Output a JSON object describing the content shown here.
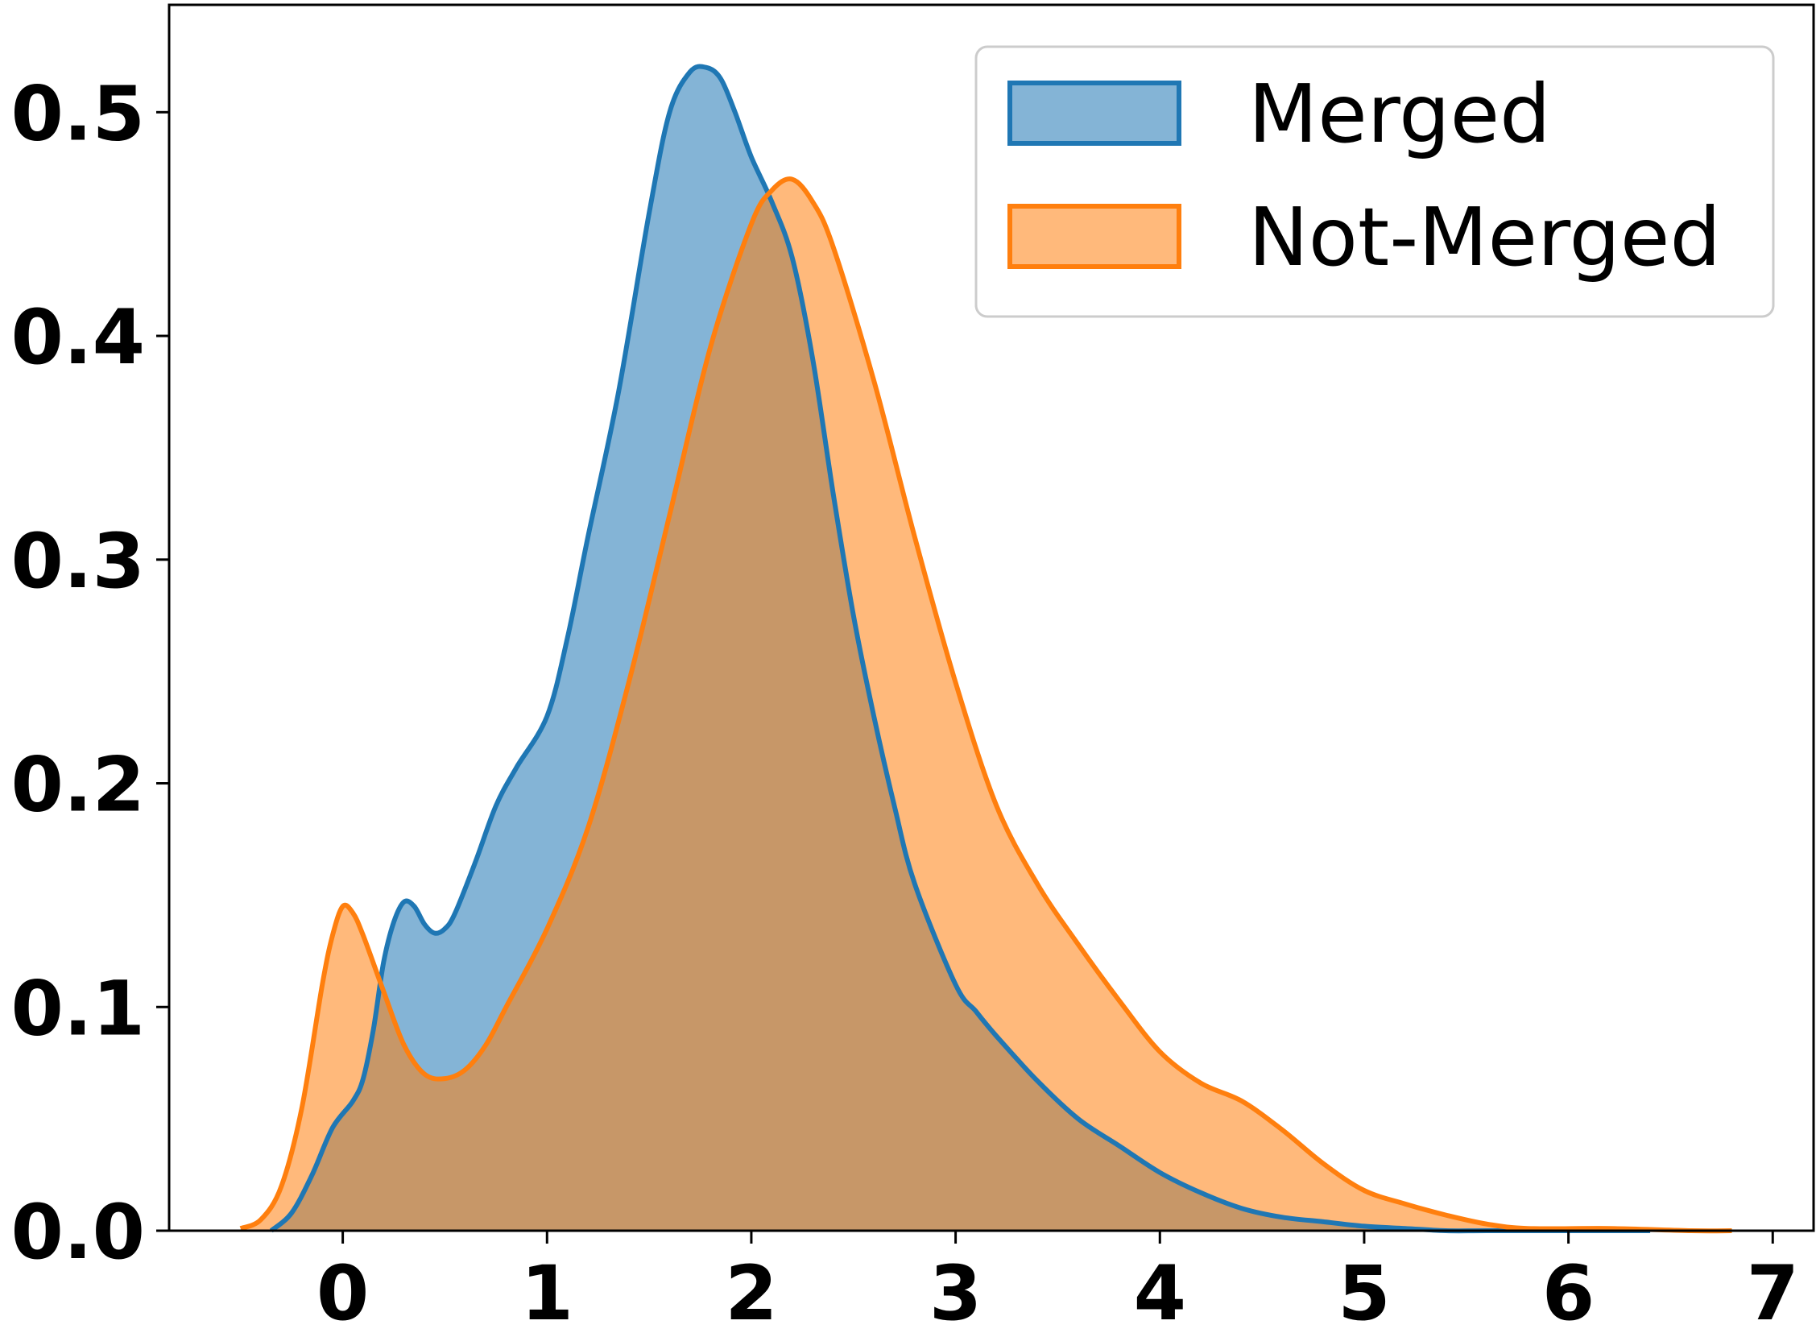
{
  "chart_data": {
    "type": "area",
    "title": "",
    "xlabel": "",
    "ylabel": "",
    "xlim": [
      -0.85,
      7.2
    ],
    "ylim": [
      0,
      0.548
    ],
    "xticks": [
      "0",
      "1",
      "2",
      "3",
      "4",
      "5",
      "6",
      "7"
    ],
    "yticks": [
      "0.0",
      "0.1",
      "0.2",
      "0.3",
      "0.4",
      "0.5"
    ],
    "grid": false,
    "legend": {
      "placement": "top-right"
    },
    "series": [
      {
        "name": "Merged",
        "line_color": "#1f77b4",
        "fill_color": "#1f77b4",
        "fill_opacity": 0.55,
        "x": [
          -0.35,
          -0.25,
          -0.15,
          -0.05,
          0.05,
          0.1,
          0.15,
          0.2,
          0.25,
          0.3,
          0.35,
          0.4,
          0.45,
          0.5,
          0.55,
          0.65,
          0.75,
          0.85,
          1.0,
          1.1,
          1.2,
          1.35,
          1.5,
          1.6,
          1.7,
          1.78,
          1.85,
          1.92,
          2.0,
          2.1,
          2.2,
          2.3,
          2.4,
          2.5,
          2.6,
          2.7,
          2.8,
          3.0,
          3.1,
          3.2,
          3.4,
          3.6,
          3.8,
          4.0,
          4.2,
          4.4,
          4.6,
          4.8,
          5.0,
          5.2,
          5.4,
          5.6,
          6.0,
          6.4
        ],
        "y": [
          0.0,
          0.008,
          0.025,
          0.046,
          0.058,
          0.068,
          0.09,
          0.12,
          0.138,
          0.147,
          0.145,
          0.137,
          0.133,
          0.135,
          0.142,
          0.165,
          0.19,
          0.207,
          0.23,
          0.265,
          0.31,
          0.375,
          0.455,
          0.5,
          0.518,
          0.52,
          0.515,
          0.5,
          0.48,
          0.46,
          0.435,
          0.39,
          0.33,
          0.275,
          0.23,
          0.19,
          0.155,
          0.11,
          0.098,
          0.087,
          0.067,
          0.05,
          0.038,
          0.026,
          0.017,
          0.01,
          0.006,
          0.004,
          0.002,
          0.001,
          0.0,
          0.0,
          0.0,
          0.0
        ]
      },
      {
        "name": "Not-Merged",
        "line_color": "#ff7f0e",
        "fill_color": "#ff7f0e",
        "fill_opacity": 0.55,
        "x": [
          -0.5,
          -0.4,
          -0.3,
          -0.2,
          -0.1,
          -0.05,
          0.0,
          0.05,
          0.1,
          0.2,
          0.3,
          0.4,
          0.5,
          0.6,
          0.7,
          0.8,
          1.0,
          1.2,
          1.4,
          1.6,
          1.8,
          2.0,
          2.1,
          2.2,
          2.3,
          2.4,
          2.6,
          2.8,
          3.0,
          3.2,
          3.4,
          3.6,
          3.8,
          4.0,
          4.2,
          4.4,
          4.6,
          4.8,
          5.0,
          5.2,
          5.4,
          5.6,
          5.8,
          6.2,
          6.6,
          6.8
        ],
        "y": [
          0.001,
          0.005,
          0.02,
          0.055,
          0.11,
          0.132,
          0.145,
          0.142,
          0.132,
          0.107,
          0.083,
          0.07,
          0.068,
          0.072,
          0.083,
          0.1,
          0.135,
          0.18,
          0.245,
          0.32,
          0.395,
          0.45,
          0.465,
          0.47,
          0.46,
          0.44,
          0.38,
          0.31,
          0.245,
          0.19,
          0.155,
          0.128,
          0.103,
          0.08,
          0.066,
          0.058,
          0.045,
          0.03,
          0.018,
          0.012,
          0.007,
          0.003,
          0.001,
          0.001,
          0.0,
          0.0
        ]
      }
    ]
  }
}
